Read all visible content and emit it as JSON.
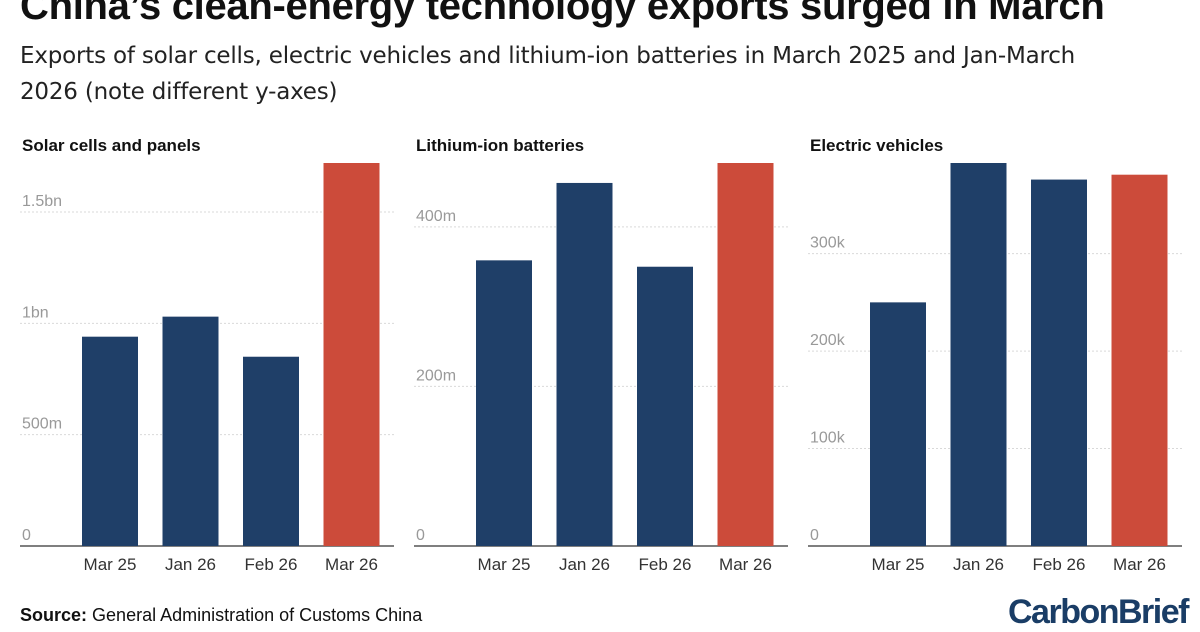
{
  "title": "China’s clean-energy technology exports surged in March",
  "subtitle": "Exports of solar cells, electric vehicles and lithium-ion batteries in March 2025 and Jan-March 2026 (note different y-axes)",
  "source_label": "Source:",
  "source_text": "General Administration of Customs China",
  "logo": "CarbonBrief",
  "colors": {
    "base": "#1f3f68",
    "highlight": "#cc4b3a",
    "grid": "#d9d9d9",
    "tick": "#999999"
  },
  "chart_data": [
    {
      "type": "bar",
      "title": "Solar cells and panels",
      "categories": [
        "Mar 25",
        "Jan 26",
        "Feb 26",
        "Mar 26"
      ],
      "values": [
        940000000,
        1030000000,
        850000000,
        1720000000
      ],
      "highlight": [
        false,
        false,
        false,
        true
      ],
      "ylim": [
        0,
        1720000000
      ],
      "ticks": [
        {
          "value": 0,
          "label": "0"
        },
        {
          "value": 500000000,
          "label": "500m"
        },
        {
          "value": 1000000000,
          "label": "1bn"
        },
        {
          "value": 1500000000,
          "label": "1.5bn"
        }
      ]
    },
    {
      "type": "bar",
      "title": "Lithium-ion batteries",
      "categories": [
        "Mar 25",
        "Jan 26",
        "Feb 26",
        "Mar 26"
      ],
      "values": [
        358000000,
        455000000,
        350000000,
        480000000
      ],
      "highlight": [
        false,
        false,
        false,
        true
      ],
      "ylim": [
        0,
        480000000
      ],
      "ticks": [
        {
          "value": 0,
          "label": "0"
        },
        {
          "value": 200000000,
          "label": "200m"
        },
        {
          "value": 400000000,
          "label": "400m"
        }
      ]
    },
    {
      "type": "bar",
      "title": "Electric vehicles",
      "categories": [
        "Mar 25",
        "Jan 26",
        "Feb 26",
        "Mar 26"
      ],
      "values": [
        250000,
        393000,
        376000,
        381000
      ],
      "highlight": [
        false,
        false,
        false,
        true
      ],
      "ylim": [
        0,
        393000
      ],
      "ticks": [
        {
          "value": 0,
          "label": "0"
        },
        {
          "value": 100000,
          "label": "100k"
        },
        {
          "value": 200000,
          "label": "200k"
        },
        {
          "value": 300000,
          "label": "300k"
        }
      ]
    }
  ]
}
